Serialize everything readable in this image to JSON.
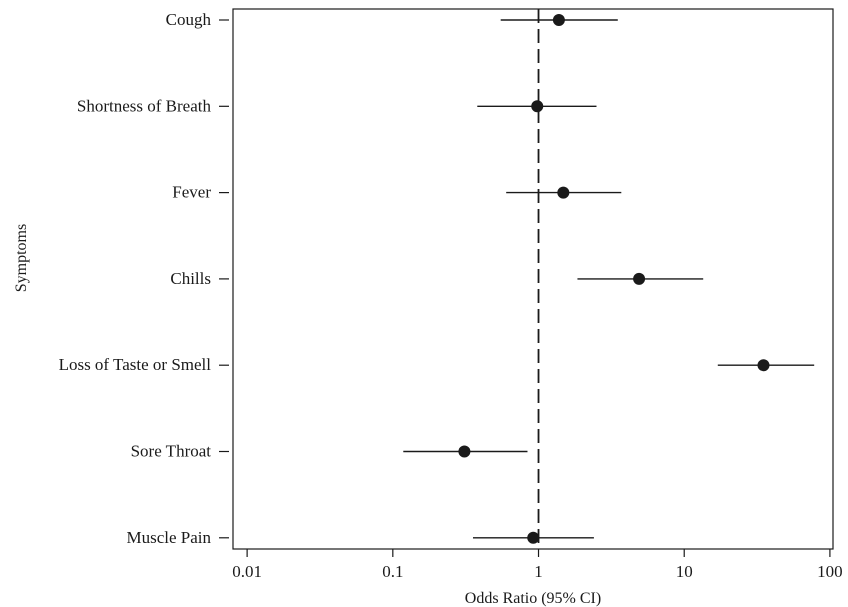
{
  "chart_data": {
    "type": "scatter",
    "subtype": "forest-plot",
    "xlabel": "Odds Ratio (95% CI)",
    "ylabel": "Symptoms",
    "x_scale": "log10",
    "xlim": [
      0.008,
      105
    ],
    "x_ticks": [
      {
        "value": 0.01,
        "label": "0.01"
      },
      {
        "value": 0.1,
        "label": "0.1"
      },
      {
        "value": 1,
        "label": "1"
      },
      {
        "value": 10,
        "label": "10"
      },
      {
        "value": 100,
        "label": "100"
      }
    ],
    "reference_line": {
      "x": 1,
      "style": "dashed"
    },
    "grid": false,
    "legend": "none",
    "categories": [
      "Cough",
      "Shortness of Breath",
      "Fever",
      "Chills",
      "Loss of Taste or Smell",
      "Sore Throat",
      "Muscle Pain"
    ],
    "points": [
      {
        "label": "Cough",
        "or": 1.38,
        "lower": 0.55,
        "upper": 3.5
      },
      {
        "label": "Shortness of Breath",
        "or": 0.98,
        "lower": 0.38,
        "upper": 2.5
      },
      {
        "label": "Fever",
        "or": 1.48,
        "lower": 0.6,
        "upper": 3.7
      },
      {
        "label": "Chills",
        "or": 4.9,
        "lower": 1.85,
        "upper": 13.5
      },
      {
        "label": "Loss of Taste or Smell",
        "or": 35,
        "lower": 17,
        "upper": 78
      },
      {
        "label": "Sore Throat",
        "or": 0.31,
        "lower": 0.118,
        "upper": 0.84
      },
      {
        "label": "Muscle Pain",
        "or": 0.92,
        "lower": 0.355,
        "upper": 2.4
      }
    ],
    "colors": {
      "points": "#1a1a1a",
      "lines": "#1a1a1a"
    }
  }
}
